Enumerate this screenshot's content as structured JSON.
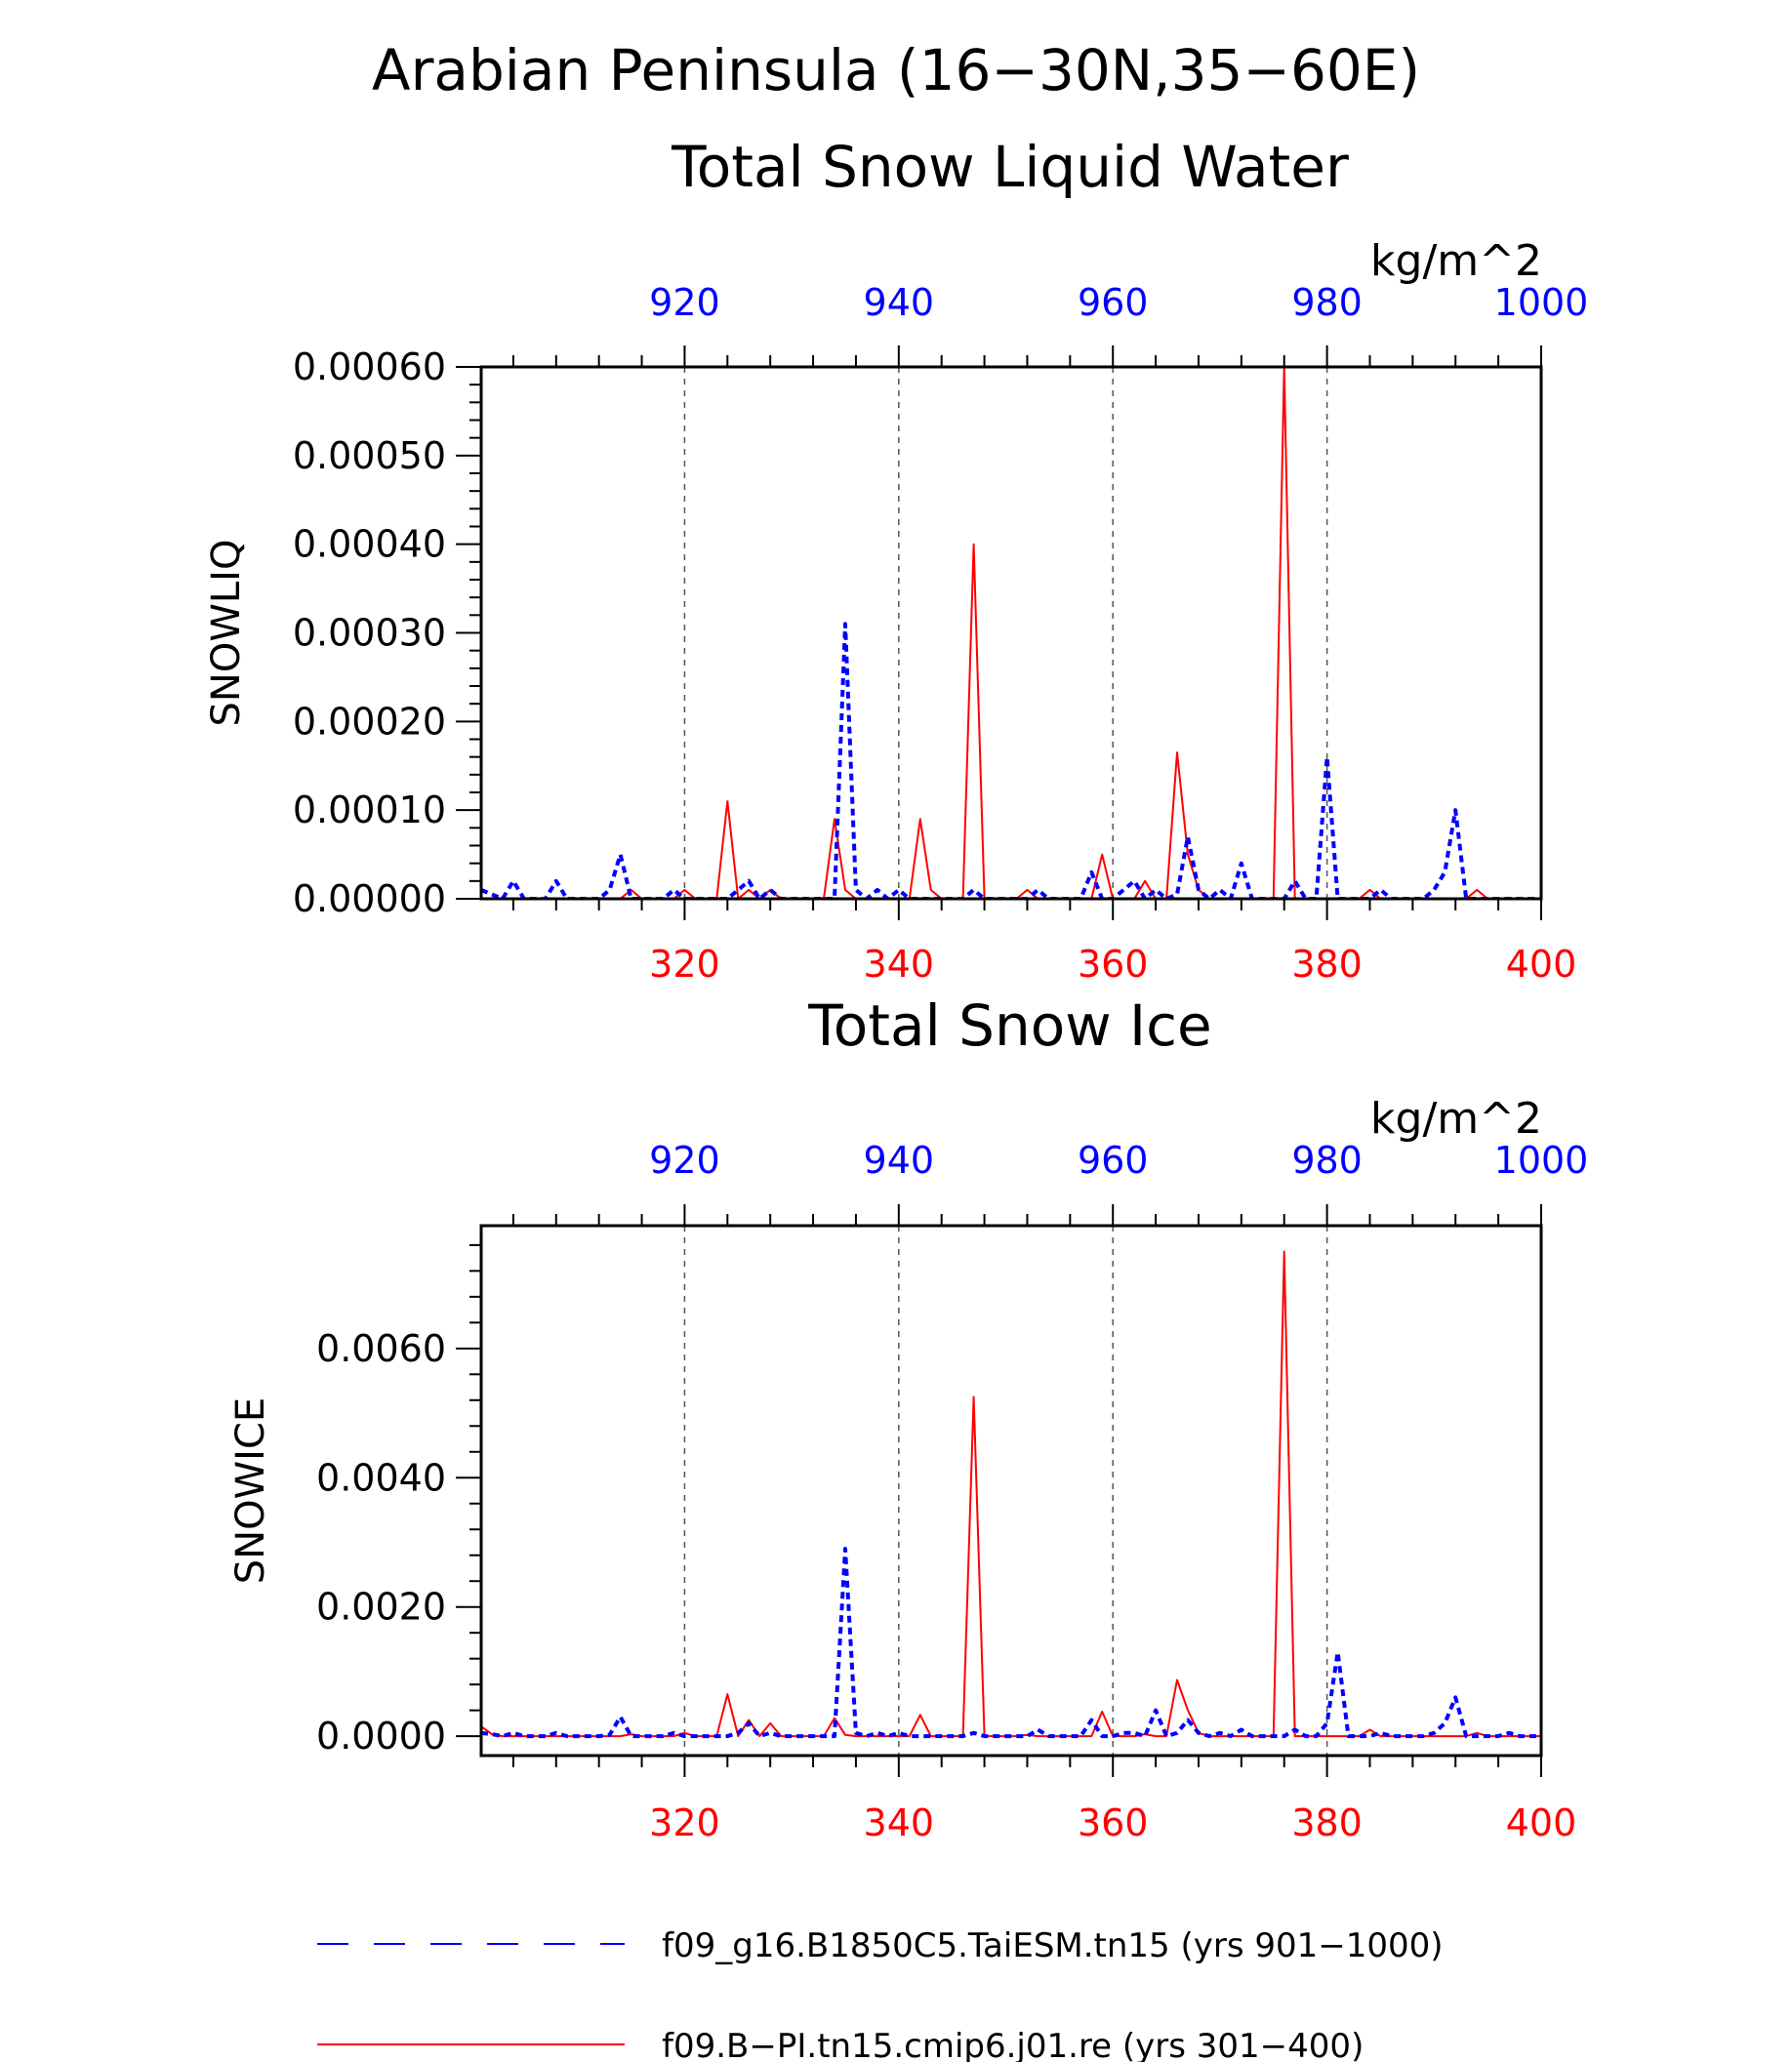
{
  "figure": {
    "title_line1": "Arabian Peninsula (16−30N,35−60E)",
    "colors": {
      "blue": "#0000ff",
      "red": "#ff0000",
      "axis": "#000000",
      "grid": "#555555"
    }
  },
  "legend": {
    "entries": [
      {
        "label": "f09_g16.B1850C5.TaiESM.tn15 (yrs 901−1000)",
        "color": "#0000ff",
        "style": "dashed"
      },
      {
        "label": "f09.B−PI.tn15.cmip6.j01.re (yrs 301−400)",
        "color": "#ff0000",
        "style": "solid"
      }
    ]
  },
  "chart_data": [
    {
      "type": "line",
      "title": "Total Snow Liquid Water",
      "ylabel": "SNOWLIQ",
      "units": "kg/m^2",
      "ylim": [
        0,
        0.0006
      ],
      "yticks": [
        0.0,
        0.0001,
        0.0002,
        0.0003,
        0.0004,
        0.0005,
        0.0006
      ],
      "ytick_labels": [
        "0.00000",
        "0.00010",
        "0.00020",
        "0.00030",
        "0.00040",
        "0.00050",
        "0.00060"
      ],
      "bottom_xlim": [
        301,
        400
      ],
      "bottom_xticks": [
        "320",
        "340",
        "360",
        "380",
        "400"
      ],
      "top_xlim": [
        901,
        1000
      ],
      "top_xticks": [
        "920",
        "940",
        "960",
        "980",
        "1000"
      ],
      "grid": "vertical dashed",
      "series": [
        {
          "name": "f09.B−PI.tn15.cmip6.j01.re (yrs 301−400)",
          "axis": "bottom",
          "color": "#ff0000",
          "style": "solid",
          "x": [
            301,
            302,
            303,
            304,
            305,
            306,
            307,
            308,
            309,
            310,
            311,
            312,
            313,
            314,
            315,
            316,
            317,
            318,
            319,
            320,
            321,
            322,
            323,
            324,
            325,
            326,
            327,
            328,
            329,
            330,
            331,
            332,
            333,
            334,
            335,
            336,
            337,
            338,
            339,
            340,
            341,
            342,
            343,
            344,
            345,
            346,
            347,
            348,
            349,
            350,
            351,
            352,
            353,
            354,
            355,
            356,
            357,
            358,
            359,
            360,
            361,
            362,
            363,
            364,
            365,
            366,
            367,
            368,
            369,
            370,
            371,
            372,
            373,
            374,
            375,
            376,
            377,
            378,
            379,
            380,
            381,
            382,
            383,
            384,
            385,
            386,
            387,
            388,
            389,
            390,
            391,
            392,
            393,
            394,
            395,
            396,
            397,
            398,
            399,
            400
          ],
          "y": [
            0,
            0,
            0,
            0,
            0,
            0,
            0,
            0,
            0,
            0,
            0,
            0,
            0,
            0,
            1e-05,
            0,
            0,
            0,
            0,
            1e-05,
            0,
            0,
            0,
            0.00011,
            0,
            1e-05,
            0,
            1e-05,
            0,
            0,
            0,
            0,
            0,
            9e-05,
            1e-05,
            0,
            0,
            0,
            0,
            0,
            0,
            9e-05,
            1e-05,
            0,
            0,
            0,
            0.0004,
            0,
            0,
            0,
            0,
            1e-05,
            0,
            0,
            0,
            0,
            0,
            0,
            5e-05,
            0,
            0,
            0,
            2e-05,
            0,
            0,
            0.000165,
            5e-05,
            1e-05,
            0,
            0,
            0,
            0,
            0,
            0,
            0,
            0.0006,
            0,
            0,
            0,
            0,
            0,
            0,
            0,
            1e-05,
            0,
            0,
            0,
            0,
            0,
            0,
            0,
            0,
            0,
            1e-05,
            0,
            0,
            0,
            0,
            0,
            0
          ]
        },
        {
          "name": "f09_g16.B1850C5.TaiESM.tn15 (yrs 901−1000)",
          "axis": "top",
          "color": "#0000ff",
          "style": "dashed",
          "x": [
            901,
            902,
            903,
            904,
            905,
            906,
            907,
            908,
            909,
            910,
            911,
            912,
            913,
            914,
            915,
            916,
            917,
            918,
            919,
            920,
            921,
            922,
            923,
            924,
            925,
            926,
            927,
            928,
            929,
            930,
            931,
            932,
            933,
            934,
            935,
            936,
            937,
            938,
            939,
            940,
            941,
            942,
            943,
            944,
            945,
            946,
            947,
            948,
            949,
            950,
            951,
            952,
            953,
            954,
            955,
            956,
            957,
            958,
            959,
            960,
            961,
            962,
            963,
            964,
            965,
            966,
            967,
            968,
            969,
            970,
            971,
            972,
            973,
            974,
            975,
            976,
            977,
            978,
            979,
            980,
            981,
            982,
            983,
            984,
            985,
            986,
            987,
            988,
            989,
            990,
            991,
            992,
            993,
            994,
            995,
            996,
            997,
            998,
            999,
            1000
          ],
          "y": [
            1e-05,
            5e-06,
            0,
            2e-05,
            0,
            0,
            0,
            2e-05,
            0,
            0,
            0,
            0,
            1e-05,
            5e-05,
            0,
            0,
            0,
            0,
            1e-05,
            0,
            0,
            0,
            0,
            0,
            1e-05,
            2e-05,
            0,
            1e-05,
            0,
            0,
            0,
            0,
            0,
            0,
            0.00031,
            1e-05,
            0,
            1e-05,
            0,
            1e-05,
            0,
            0,
            0,
            0,
            0,
            0,
            1e-05,
            0,
            0,
            0,
            0,
            0,
            1e-05,
            0,
            0,
            0,
            0,
            3e-05,
            0,
            0,
            1e-05,
            2e-05,
            0,
            1e-05,
            0,
            5e-06,
            7e-05,
            1e-05,
            0,
            1e-05,
            0,
            4e-05,
            0,
            0,
            0,
            0,
            2e-05,
            0,
            0,
            0.00016,
            0,
            0,
            0,
            0,
            1e-05,
            0,
            0,
            0,
            0,
            1e-05,
            3e-05,
            0.0001,
            0,
            0,
            0,
            0,
            0,
            0,
            0,
            0
          ]
        }
      ]
    },
    {
      "type": "line",
      "title": "Total Snow Ice",
      "ylabel": "SNOWICE",
      "units": "kg/m^2",
      "ylim": [
        -0.0003,
        0.0079
      ],
      "yticks": [
        0.0,
        0.002,
        0.004,
        0.006
      ],
      "ytick_labels": [
        "0.0000",
        "0.0020",
        "0.0040",
        "0.0060"
      ],
      "bottom_xlim": [
        301,
        400
      ],
      "bottom_xticks": [
        "320",
        "340",
        "360",
        "380",
        "400"
      ],
      "top_xlim": [
        901,
        1000
      ],
      "top_xticks": [
        "920",
        "940",
        "960",
        "980",
        "1000"
      ],
      "grid": "vertical dashed",
      "series": [
        {
          "name": "f09.B−PI.tn15.cmip6.j01.re (yrs 301−400)",
          "axis": "bottom",
          "color": "#ff0000",
          "style": "solid",
          "x": [
            301,
            302,
            303,
            304,
            305,
            306,
            307,
            308,
            309,
            310,
            311,
            312,
            313,
            314,
            315,
            316,
            317,
            318,
            319,
            320,
            321,
            322,
            323,
            324,
            325,
            326,
            327,
            328,
            329,
            330,
            331,
            332,
            333,
            334,
            335,
            336,
            337,
            338,
            339,
            340,
            341,
            342,
            343,
            344,
            345,
            346,
            347,
            348,
            349,
            350,
            351,
            352,
            353,
            354,
            355,
            356,
            357,
            358,
            359,
            360,
            361,
            362,
            363,
            364,
            365,
            366,
            367,
            368,
            369,
            370,
            371,
            372,
            373,
            374,
            375,
            376,
            377,
            378,
            379,
            380,
            381,
            382,
            383,
            384,
            385,
            386,
            387,
            388,
            389,
            390,
            391,
            392,
            393,
            394,
            395,
            396,
            397,
            398,
            399,
            400
          ],
          "y": [
            0.00015,
            3e-05,
            0,
            0,
            0,
            0,
            0,
            0,
            0,
            0,
            0,
            0,
            0,
            0,
            3e-05,
            0,
            0,
            0,
            0,
            5e-05,
            0,
            0,
            0,
            0.00065,
            0,
            0.00025,
            0,
            0.0002,
            0,
            0,
            0,
            0,
            0,
            0.00028,
            2e-05,
            0,
            0,
            0,
            0,
            0,
            0,
            0.00033,
            0,
            0,
            0,
            0,
            0.00525,
            0,
            0,
            0,
            0,
            2e-05,
            0,
            0,
            0,
            0,
            0,
            0,
            0.00038,
            0,
            0,
            0,
            3e-05,
            0,
            0,
            0.00087,
            0.0004,
            5e-05,
            0,
            0,
            0,
            0,
            0,
            0,
            0,
            0.0075,
            0,
            0,
            0,
            0,
            0,
            0,
            0,
            0.0001,
            0,
            0,
            0,
            0,
            0,
            0,
            0,
            0,
            0,
            5e-05,
            0,
            0,
            0,
            0,
            0,
            0
          ]
        },
        {
          "name": "f09_g16.B1850C5.TaiESM.tn15 (yrs 901−1000)",
          "axis": "top",
          "color": "#0000ff",
          "style": "dashed",
          "x": [
            901,
            902,
            903,
            904,
            905,
            906,
            907,
            908,
            909,
            910,
            911,
            912,
            913,
            914,
            915,
            916,
            917,
            918,
            919,
            920,
            921,
            922,
            923,
            924,
            925,
            926,
            927,
            928,
            929,
            930,
            931,
            932,
            933,
            934,
            935,
            936,
            937,
            938,
            939,
            940,
            941,
            942,
            943,
            944,
            945,
            946,
            947,
            948,
            949,
            950,
            951,
            952,
            953,
            954,
            955,
            956,
            957,
            958,
            959,
            960,
            961,
            962,
            963,
            964,
            965,
            966,
            967,
            968,
            969,
            970,
            971,
            972,
            973,
            974,
            975,
            976,
            977,
            978,
            979,
            980,
            981,
            982,
            983,
            984,
            985,
            986,
            987,
            988,
            989,
            990,
            991,
            992,
            993,
            994,
            995,
            996,
            997,
            998,
            999,
            1000
          ],
          "y": [
            5e-05,
            3e-05,
            0,
            5e-05,
            0,
            0,
            0,
            5e-05,
            0,
            0,
            0,
            0,
            2e-05,
            0.0003,
            0,
            0,
            0,
            0,
            5e-05,
            0,
            0,
            0,
            0,
            0,
            5e-05,
            0.0002,
            0,
            5e-05,
            0,
            0,
            0,
            0,
            0,
            0,
            0.0029,
            5e-05,
            0,
            5e-05,
            0,
            5e-05,
            0,
            0,
            0,
            0,
            0,
            0,
            5e-05,
            0,
            0,
            0,
            0,
            0,
            0.0001,
            0,
            0,
            0,
            0,
            0.00025,
            0,
            0,
            5e-05,
            5e-05,
            0,
            0.0004,
            0,
            5e-05,
            0.00025,
            5e-05,
            0,
            5e-05,
            0,
            0.0001,
            0,
            0,
            0,
            0,
            0.0001,
            0,
            0,
            0.0002,
            0.0013,
            0,
            0,
            0,
            5e-05,
            0,
            0,
            0,
            0,
            5e-05,
            0.0002,
            0.0006,
            0,
            0,
            0,
            0,
            5e-05,
            0,
            0,
            0
          ]
        }
      ]
    }
  ]
}
